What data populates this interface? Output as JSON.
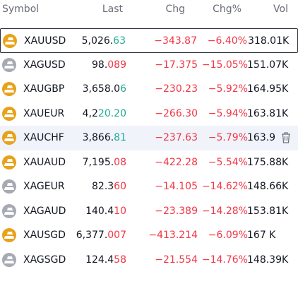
{
  "header": {
    "symbol": "Symbol",
    "last": "Last",
    "chg": "Chg",
    "chg_pct": "Chg%",
    "vol": "Vol"
  },
  "colors": {
    "down": "#f23645",
    "up": "#22ab94",
    "gold_icon": "#e8a21a",
    "silver_icon": "#a7a9b4",
    "header_text": "#6a6d78"
  },
  "rows": [
    {
      "icon": "gold-bars-icon",
      "symbol": "XAUUSD",
      "last_main": "5,026.",
      "last_tick": "63",
      "tick_dir": "up",
      "chg": "−343.87",
      "chg_pct": "−6.40%",
      "vol": "318.01K"
    },
    {
      "icon": "silver-bars-icon",
      "symbol": "XAGUSD",
      "last_main": "98.",
      "last_tick": "089",
      "tick_dir": "down",
      "chg": "−17.375",
      "chg_pct": "−15.05%",
      "vol": "151.07K"
    },
    {
      "icon": "gold-bars-icon",
      "symbol": "XAUGBP",
      "last_main": "3,658.0",
      "last_tick": "6",
      "tick_dir": "up",
      "chg": "−230.23",
      "chg_pct": "−5.92%",
      "vol": "164.95K"
    },
    {
      "icon": "gold-bars-icon",
      "symbol": "XAUEUR",
      "last_main": "4,2",
      "last_tick": "20.20",
      "tick_dir": "up",
      "chg": "−266.30",
      "chg_pct": "−5.94%",
      "vol": "163.81K"
    },
    {
      "icon": "gold-bars-icon",
      "symbol": "XAUCHF",
      "last_main": "3,866.",
      "last_tick": "81",
      "tick_dir": "up",
      "chg": "−237.63",
      "chg_pct": "−5.79%",
      "vol": "163.9"
    },
    {
      "icon": "gold-bars-icon",
      "symbol": "XAUAUD",
      "last_main": "7,195.",
      "last_tick": "08",
      "tick_dir": "down",
      "chg": "−422.28",
      "chg_pct": "−5.54%",
      "vol": "175.88K"
    },
    {
      "icon": "silver-bars-icon",
      "symbol": "XAGEUR",
      "last_main": "82.3",
      "last_tick": "60",
      "tick_dir": "down",
      "chg": "−14.105",
      "chg_pct": "−14.62%",
      "vol": "148.66K"
    },
    {
      "icon": "silver-bars-icon",
      "symbol": "XAGAUD",
      "last_main": "140.4",
      "last_tick": "10",
      "tick_dir": "down",
      "chg": "−23.389",
      "chg_pct": "−14.28%",
      "vol": "153.81K"
    },
    {
      "icon": "gold-bars-icon",
      "symbol": "XAUSGD",
      "last_main": "6,377.",
      "last_tick": "007",
      "tick_dir": "down",
      "chg": "−413.214",
      "chg_pct": "−6.09%",
      "vol": "167 K"
    },
    {
      "icon": "silver-bars-icon",
      "symbol": "XAGSGD",
      "last_main": "124.4",
      "last_tick": "58",
      "tick_dir": "down",
      "chg": "−21.554",
      "chg_pct": "−14.76%",
      "vol": "148.39K"
    }
  ],
  "selected_row": 0,
  "hovered_row": 4,
  "hover_action": {
    "icon": "trash-icon"
  }
}
